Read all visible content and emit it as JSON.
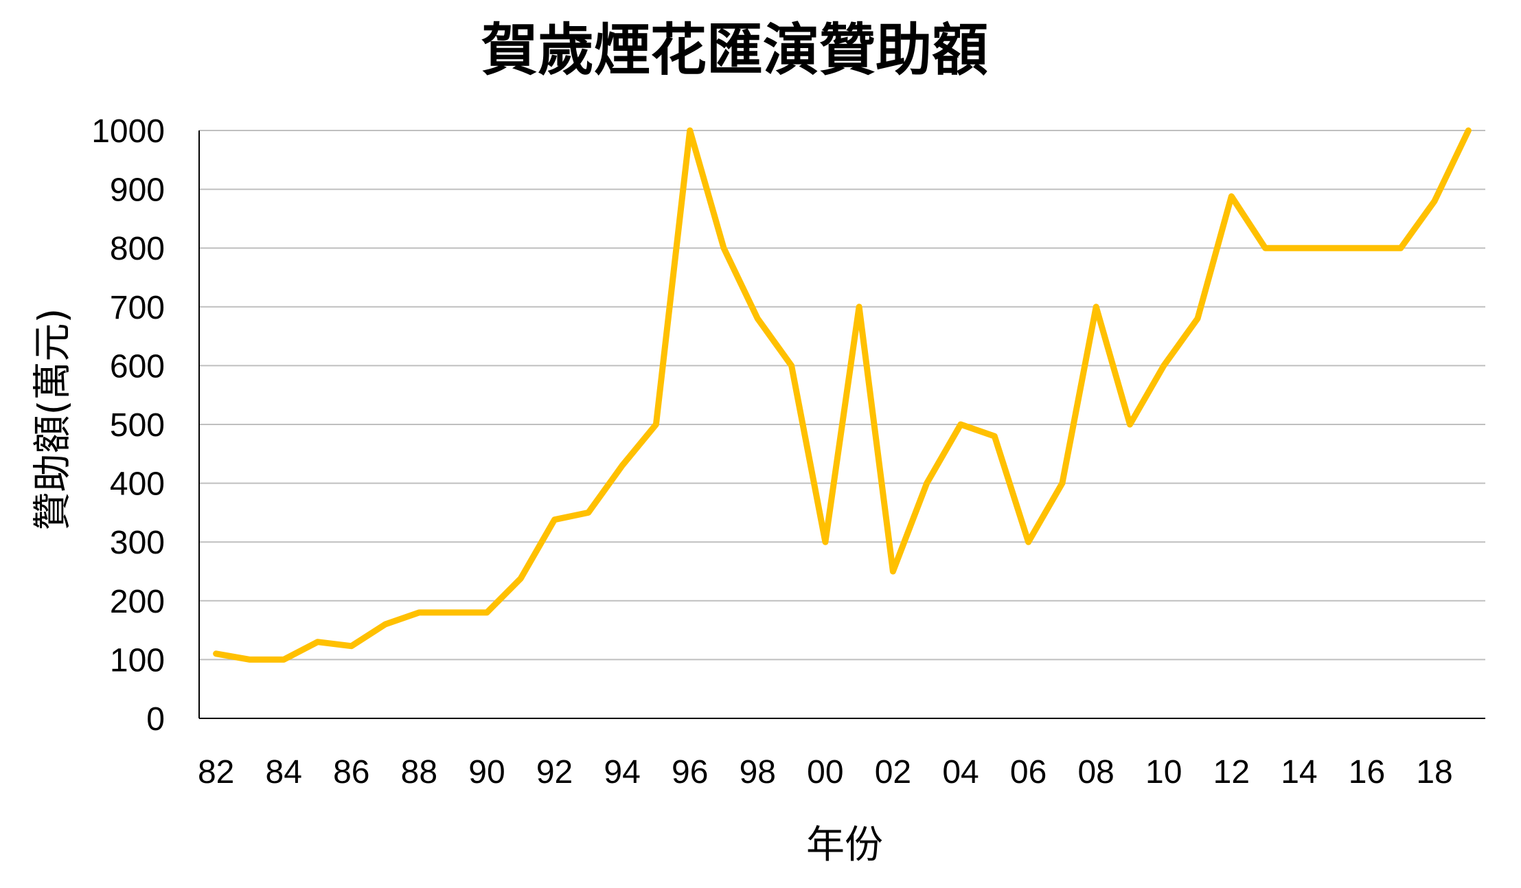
{
  "chart_data": {
    "type": "line",
    "title": "賀歲煙花匯演贊助額",
    "xlabel": "年份",
    "ylabel": "贊助額(萬元)",
    "ylim": [
      0,
      1000
    ],
    "yticks": [
      0,
      100,
      200,
      300,
      400,
      500,
      600,
      700,
      800,
      900,
      1000
    ],
    "x_tick_labels": [
      "82",
      "84",
      "86",
      "88",
      "90",
      "92",
      "94",
      "96",
      "98",
      "00",
      "02",
      "04",
      "06",
      "08",
      "10",
      "12",
      "14",
      "16",
      "18"
    ],
    "x": [
      "82",
      "83",
      "84",
      "85",
      "86",
      "87",
      "88",
      "89",
      "90",
      "91",
      "92",
      "93",
      "94",
      "95",
      "96",
      "97",
      "98",
      "99",
      "00",
      "01",
      "02",
      "03",
      "04",
      "05",
      "06",
      "07",
      "08",
      "09",
      "10",
      "11",
      "12",
      "13",
      "14",
      "15",
      "16",
      "17",
      "18",
      "19"
    ],
    "series": [
      {
        "values": [
          110,
          100,
          100,
          130,
          123,
          160,
          180,
          180,
          180,
          238,
          338,
          350,
          430,
          500,
          1000,
          800,
          680,
          600,
          300,
          700,
          250,
          400,
          500,
          480,
          300,
          400,
          700,
          500,
          600,
          680,
          888,
          800,
          800,
          800,
          800,
          800,
          880,
          1000
        ],
        "color": "#FFC000"
      }
    ],
    "grid": true,
    "legend": "none"
  }
}
